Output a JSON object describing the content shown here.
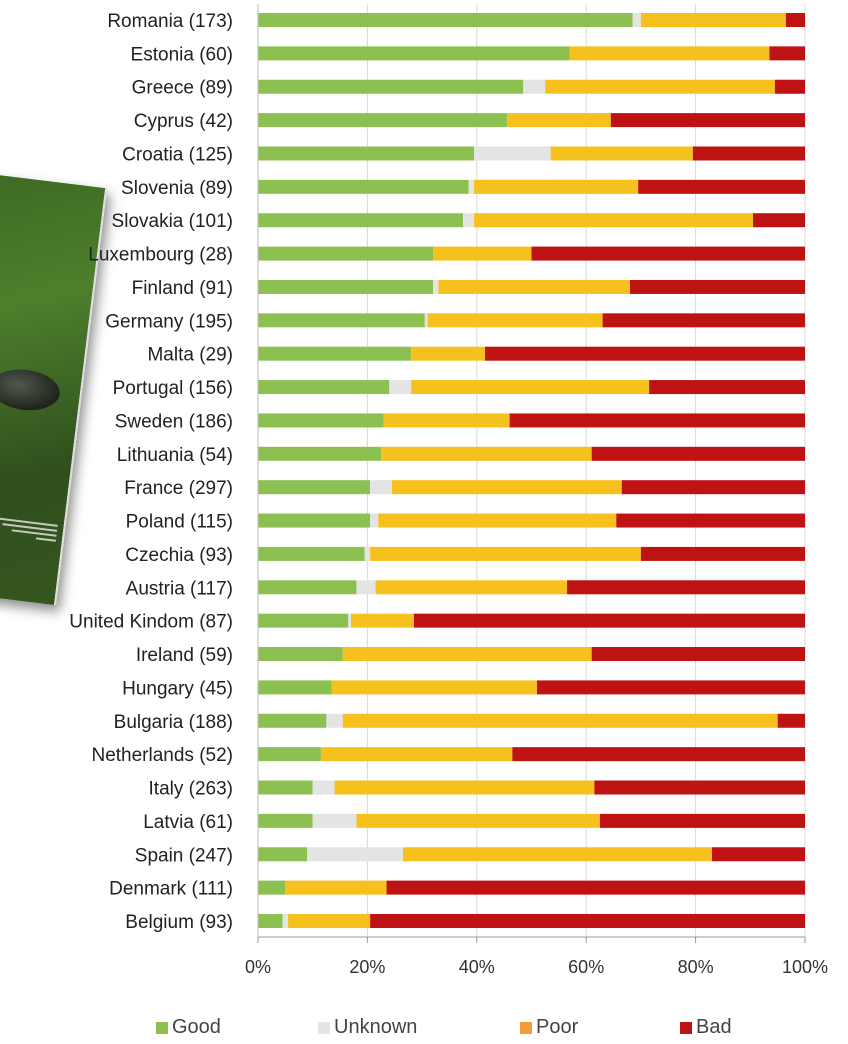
{
  "chart_data": {
    "type": "bar",
    "orientation": "horizontal",
    "stacked": true,
    "categories": [
      "Romania (173)",
      "Estonia (60)",
      "Greece (89)",
      "Cyprus (42)",
      "Croatia (125)",
      "Slovenia (89)",
      "Slovakia (101)",
      "Luxembourg (28)",
      "Finland (91)",
      "Germany (195)",
      "Malta (29)",
      "Portugal (156)",
      "Sweden (186)",
      "Lithuania (54)",
      "France (297)",
      "Poland  (115)",
      "Czechia (93)",
      "Austria (117)",
      "United Kindom (87)",
      "Ireland (59)",
      "Hungary (45)",
      "Bulgaria (188)",
      "Netherlands (52)",
      "Italy (263)",
      "Latvia (61)",
      "Spain (247)",
      "Denmark (111)",
      "Belgium (93)"
    ],
    "series": [
      {
        "name": "Good",
        "color": "#8cc152",
        "values": [
          68.5,
          57,
          48.5,
          45.5,
          39.5,
          38.5,
          37.5,
          32,
          32,
          30.5,
          28,
          24,
          23,
          22.5,
          20.5,
          20.5,
          19.5,
          18,
          16.5,
          15.5,
          13.5,
          12.5,
          11.5,
          10,
          10,
          9,
          5,
          4.5
        ]
      },
      {
        "name": "Unknown",
        "color": "#e4e4e4",
        "values": [
          1.5,
          0,
          4,
          0,
          14,
          1,
          2,
          0,
          1,
          0.5,
          0,
          4,
          0,
          0,
          4,
          1.5,
          1,
          3.5,
          0.5,
          0,
          0,
          3,
          0,
          4,
          8,
          17.5,
          0,
          1
        ]
      },
      {
        "name": "Poor",
        "color": "#f6c11d",
        "values": [
          26.5,
          36.5,
          42,
          19,
          26,
          30,
          51,
          18,
          35,
          32,
          13.5,
          43.5,
          23,
          38.5,
          42,
          43.5,
          49.5,
          35,
          11.5,
          45.5,
          37.5,
          79.5,
          35,
          47.5,
          44.5,
          56.5,
          18.5,
          15
        ]
      },
      {
        "name": "Bad",
        "color": "#bf1313",
        "values": [
          3.5,
          6.5,
          5.5,
          35.5,
          20.5,
          30.5,
          9.5,
          50,
          32,
          37,
          58.5,
          28.5,
          54,
          39,
          33.5,
          34.5,
          30,
          43.5,
          71.5,
          39,
          49,
          5,
          53.5,
          38.5,
          37.5,
          17,
          76.5,
          79.5
        ]
      }
    ],
    "xlim": [
      0,
      100
    ],
    "xticks": [
      "0%",
      "20%",
      "40%",
      "60%",
      "80%",
      "100%"
    ],
    "grid": true,
    "legend_position": "bottom",
    "legend_colors": [
      "#8cc152",
      "#e4e4e4",
      "#f39c3c",
      "#bf1313"
    ]
  }
}
